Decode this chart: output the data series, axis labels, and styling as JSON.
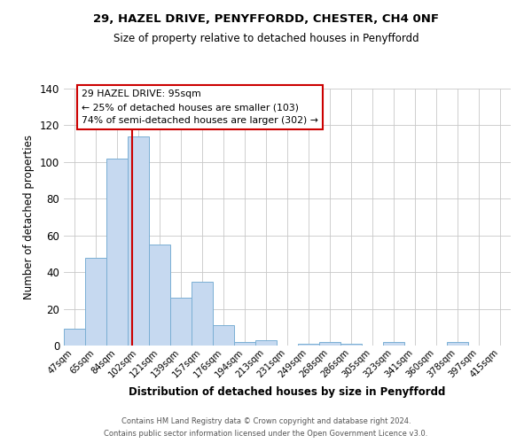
{
  "title": "29, HAZEL DRIVE, PENYFFORDD, CHESTER, CH4 0NF",
  "subtitle": "Size of property relative to detached houses in Penyffordd",
  "xlabel": "Distribution of detached houses by size in Penyffordd",
  "ylabel": "Number of detached properties",
  "bar_labels": [
    "47sqm",
    "65sqm",
    "84sqm",
    "102sqm",
    "121sqm",
    "139sqm",
    "157sqm",
    "176sqm",
    "194sqm",
    "213sqm",
    "231sqm",
    "249sqm",
    "268sqm",
    "286sqm",
    "305sqm",
    "323sqm",
    "341sqm",
    "360sqm",
    "378sqm",
    "397sqm",
    "415sqm"
  ],
  "bar_values": [
    9,
    48,
    102,
    114,
    55,
    26,
    35,
    11,
    2,
    3,
    0,
    1,
    2,
    1,
    0,
    2,
    0,
    0,
    2,
    0,
    0
  ],
  "bar_color": "#c6d9f0",
  "bar_edge_color": "#7aafd4",
  "vline_x_idx": 2.72,
  "vline_color": "#cc0000",
  "ylim": [
    0,
    140
  ],
  "yticks": [
    0,
    20,
    40,
    60,
    80,
    100,
    120,
    140
  ],
  "annotation_title": "29 HAZEL DRIVE: 95sqm",
  "annotation_line1": "← 25% of detached houses are smaller (103)",
  "annotation_line2": "74% of semi-detached houses are larger (302) →",
  "annotation_box_color": "#ffffff",
  "annotation_box_edge": "#cc0000",
  "footer_line1": "Contains HM Land Registry data © Crown copyright and database right 2024.",
  "footer_line2": "Contains public sector information licensed under the Open Government Licence v3.0.",
  "background_color": "#ffffff",
  "grid_color": "#c8c8c8"
}
